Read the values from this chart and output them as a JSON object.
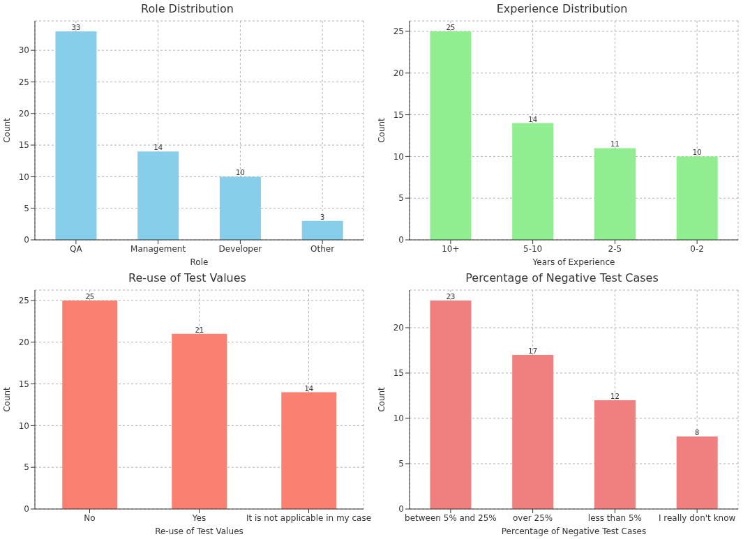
{
  "chart_data": [
    {
      "type": "bar",
      "title": "Role Distribution",
      "xlabel": "Role",
      "ylabel": "Count",
      "categories": [
        "QA",
        "Management",
        "Developer",
        "Other"
      ],
      "values": [
        33,
        14,
        10,
        3
      ],
      "color": "#87ceeb",
      "ylim": [
        0,
        34.65
      ],
      "yticks": [
        0,
        5,
        10,
        15,
        20,
        25,
        30
      ],
      "grid": true,
      "data_labels": true
    },
    {
      "type": "bar",
      "title": "Experience Distribution",
      "xlabel": "Years of Experience",
      "ylabel": "Count",
      "categories": [
        "10+",
        "5-10",
        "2-5",
        "0-2"
      ],
      "values": [
        25,
        14,
        11,
        10
      ],
      "color": "#90ee90",
      "ylim": [
        0,
        26.25
      ],
      "yticks": [
        0,
        5,
        10,
        15,
        20,
        25
      ],
      "grid": true,
      "data_labels": true
    },
    {
      "type": "bar",
      "title": "Re-use of Test Values",
      "xlabel": "Re-use of Test Values",
      "ylabel": "Count",
      "categories": [
        "No",
        "Yes",
        "It is not applicable in my case"
      ],
      "values": [
        25,
        21,
        14
      ],
      "color": "#fa8072",
      "ylim": [
        0,
        26.25
      ],
      "yticks": [
        0,
        5,
        10,
        15,
        20,
        25
      ],
      "grid": true,
      "data_labels": true
    },
    {
      "type": "bar",
      "title": "Percentage of Negative Test Cases",
      "xlabel": "Percentage of Negative Test Cases",
      "ylabel": "Count",
      "categories": [
        "between 5% and 25%",
        "over 25%",
        "less than 5%",
        "I really don't know"
      ],
      "values": [
        23,
        17,
        12,
        8
      ],
      "color": "#f08080",
      "ylim": [
        0,
        24.15
      ],
      "yticks": [
        0,
        5,
        10,
        15,
        20
      ],
      "grid": true,
      "data_labels": true
    }
  ]
}
